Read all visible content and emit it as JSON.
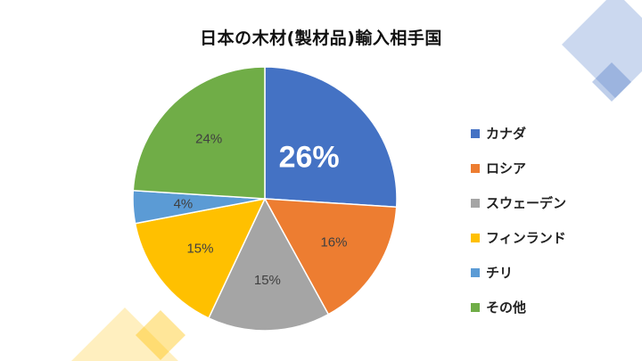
{
  "chart_data": {
    "type": "pie",
    "title": "日本の木材(製材品)輸入相手国",
    "categories": [
      "カナダ",
      "ロシア",
      "スウェーデン",
      "フィンランド",
      "チリ",
      "その他"
    ],
    "values": [
      26,
      16,
      15,
      15,
      4,
      24
    ],
    "data_labels": [
      "26%",
      "16%",
      "15%",
      "15%",
      "4%",
      "24%"
    ],
    "colors": [
      "#4472C4",
      "#ED7D31",
      "#A5A5A5",
      "#FFC000",
      "#5B9BD5",
      "#70AD47"
    ],
    "label_colors": [
      "#ffffff",
      "#404040",
      "#404040",
      "#404040",
      "#404040",
      "#404040"
    ],
    "legend_position": "right",
    "start": "12 o'clock",
    "direction": "clockwise"
  }
}
